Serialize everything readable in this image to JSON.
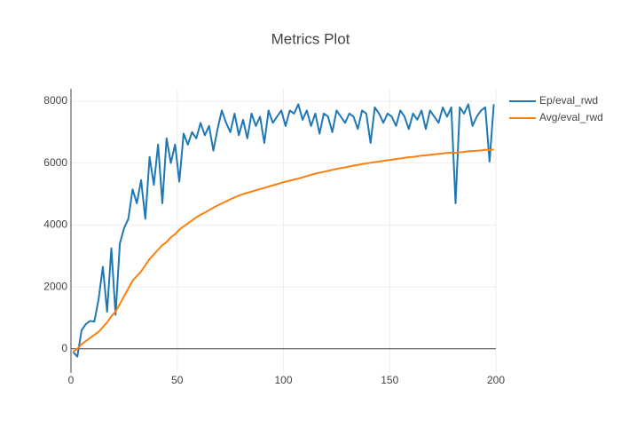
{
  "chart_data": {
    "type": "line",
    "title": "Metrics Plot",
    "x": [
      1,
      3,
      5,
      7,
      9,
      11,
      13,
      15,
      17,
      19,
      21,
      23,
      25,
      27,
      29,
      31,
      33,
      35,
      37,
      39,
      41,
      43,
      45,
      47,
      49,
      51,
      53,
      55,
      57,
      59,
      61,
      63,
      65,
      67,
      69,
      71,
      73,
      75,
      77,
      79,
      81,
      83,
      85,
      87,
      89,
      91,
      93,
      95,
      97,
      99,
      101,
      103,
      105,
      107,
      109,
      111,
      113,
      115,
      117,
      119,
      121,
      123,
      125,
      127,
      129,
      131,
      133,
      135,
      137,
      139,
      141,
      143,
      145,
      147,
      149,
      151,
      153,
      155,
      157,
      159,
      161,
      163,
      165,
      167,
      169,
      171,
      173,
      175,
      177,
      179,
      181,
      183,
      185,
      187,
      189,
      191,
      193,
      195,
      197,
      199
    ],
    "series": [
      {
        "name": "Ep/eval_rwd",
        "color": "#1f77b4",
        "values": [
          -100,
          -250,
          600,
          800,
          900,
          880,
          1600,
          2650,
          1200,
          3250,
          1100,
          3400,
          3900,
          4200,
          5150,
          4700,
          5450,
          4200,
          6200,
          5300,
          6600,
          4700,
          6800,
          6000,
          6600,
          5400,
          6950,
          6600,
          7000,
          6800,
          7300,
          6900,
          7200,
          6400,
          7100,
          7700,
          7300,
          7000,
          7600,
          6900,
          7400,
          6800,
          7600,
          7200,
          7500,
          6650,
          7700,
          7300,
          7500,
          7700,
          7200,
          7700,
          7600,
          7900,
          7400,
          7700,
          7200,
          7600,
          6950,
          7600,
          7500,
          7000,
          7700,
          7500,
          7300,
          7600,
          7500,
          7100,
          7700,
          7600,
          6650,
          7800,
          7600,
          7300,
          7600,
          7500,
          7200,
          7700,
          7500,
          7100,
          7600,
          7400,
          7700,
          7100,
          7700,
          7500,
          7300,
          7800,
          7500,
          7800,
          4700,
          7800,
          7600,
          7900,
          7200,
          7500,
          7700,
          7800,
          6050,
          7900
        ]
      },
      {
        "name": "Avg/eval_rwd",
        "color": "#ff7f0e",
        "values": [
          -100,
          0,
          150,
          250,
          350,
          450,
          550,
          700,
          850,
          1050,
          1200,
          1450,
          1700,
          1950,
          2200,
          2350,
          2500,
          2700,
          2900,
          3050,
          3200,
          3350,
          3450,
          3600,
          3700,
          3850,
          3950,
          4050,
          4150,
          4250,
          4330,
          4400,
          4480,
          4560,
          4630,
          4700,
          4760,
          4830,
          4890,
          4950,
          5000,
          5040,
          5080,
          5120,
          5160,
          5200,
          5240,
          5280,
          5320,
          5360,
          5400,
          5430,
          5470,
          5500,
          5540,
          5580,
          5620,
          5660,
          5690,
          5720,
          5750,
          5780,
          5810,
          5840,
          5860,
          5890,
          5920,
          5940,
          5970,
          5990,
          6010,
          6030,
          6050,
          6070,
          6090,
          6110,
          6130,
          6150,
          6170,
          6190,
          6200,
          6220,
          6240,
          6250,
          6270,
          6280,
          6300,
          6310,
          6330,
          6340,
          6330,
          6350,
          6360,
          6380,
          6390,
          6400,
          6410,
          6430,
          6420,
          6440
        ]
      }
    ],
    "xlim": [
      0,
      200
    ],
    "ylim": [
      -780,
      8400
    ],
    "xticks": [
      0,
      50,
      100,
      150,
      200
    ],
    "yticks": [
      0,
      2000,
      4000,
      6000,
      8000
    ],
    "grid": true,
    "legend": "right"
  }
}
